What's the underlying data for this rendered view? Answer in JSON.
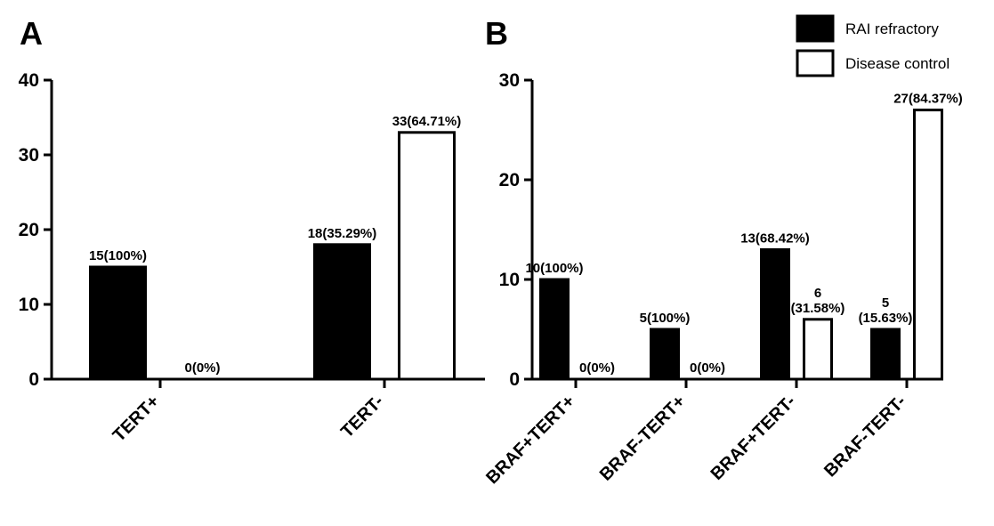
{
  "panels": [
    "A",
    "B"
  ],
  "legend": {
    "position": "top-right",
    "items": [
      {
        "label": "RAI refractory",
        "color": "#000000"
      },
      {
        "label": "Disease control",
        "color": "#ffffff"
      }
    ]
  },
  "chart_data": [
    {
      "type": "bar",
      "panel": "A",
      "categories": [
        "TERT+",
        "TERT-"
      ],
      "series": [
        {
          "name": "RAI refractory",
          "values": [
            15,
            18
          ],
          "labels": [
            "15(100%)",
            "18(35.29%)"
          ]
        },
        {
          "name": "Disease control",
          "values": [
            0,
            33
          ],
          "labels": [
            "0(0%)",
            "33(64.71%)"
          ]
        }
      ],
      "ylim": [
        0,
        40
      ],
      "yticks": [
        0,
        10,
        20,
        30,
        40
      ],
      "grid": false
    },
    {
      "type": "bar",
      "panel": "B",
      "categories": [
        "BRAF+TERT+",
        "BRAF-TERT+",
        "BRAF+TERT-",
        "BRAF-TERT-"
      ],
      "series": [
        {
          "name": "RAI refractory",
          "values": [
            10,
            5,
            13,
            5
          ],
          "labels": [
            "10(100%)",
            "5(100%)",
            "13(68.42%)",
            "5\n(15.63%)"
          ]
        },
        {
          "name": "Disease control",
          "values": [
            0,
            0,
            6,
            27
          ],
          "labels": [
            "0(0%)",
            "0(0%)",
            "6\n(31.58%)",
            "27(84.37%)"
          ]
        }
      ],
      "ylim": [
        0,
        30
      ],
      "yticks": [
        0,
        10,
        20,
        30
      ],
      "grid": false
    }
  ]
}
